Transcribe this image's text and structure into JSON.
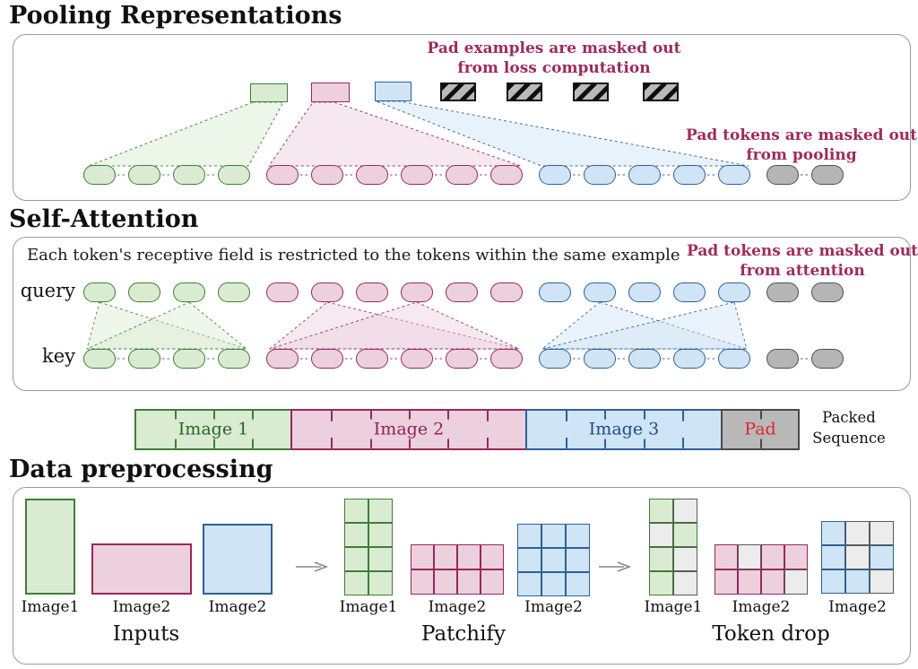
{
  "colors": {
    "green": {
      "fill": "#d9ecd2",
      "border": "#3f7d36",
      "dark": "#2a642c"
    },
    "pink": {
      "fill": "#ecd0dd",
      "border": "#97285c",
      "dark": "#8f2456"
    },
    "blue": {
      "fill": "#cfe4f5",
      "border": "#2e6095",
      "dark": "#1f4d8a"
    },
    "gray": {
      "fill": "#b5b5b5",
      "border": "#4f4f4f",
      "dark": "#333333"
    },
    "pad": {
      "fill": "#b9b9b9",
      "border": "#4a4a4a",
      "dark": "#e42527"
    },
    "drop": {
      "fill": "#ececec",
      "border": "#5a5a5a"
    },
    "annotation": "#9e2b5e",
    "arrow": "#8a8a8a"
  },
  "token_groups": [
    {
      "color": "green",
      "count": 4
    },
    {
      "color": "pink",
      "count": 6
    },
    {
      "color": "blue",
      "count": 5
    },
    {
      "color": "gray",
      "count": 2
    }
  ],
  "sections": {
    "pooling": {
      "title": "Pooling Representations",
      "pad_examples": 4,
      "anno_loss": [
        "Pad examples are masked out",
        "from loss computation"
      ],
      "anno_pool": [
        "Pad tokens are masked out",
        "from pooling"
      ]
    },
    "attention": {
      "title": "Self-Attention",
      "caption": "Each token's receptive field is restricted to the tokens within the same example",
      "anno": [
        "Pad tokens are masked out",
        "from attention"
      ],
      "query_label": "query",
      "key_label": "key"
    },
    "packed_bar": {
      "segments": [
        {
          "label": "Image 1",
          "cells": 4,
          "color": "green"
        },
        {
          "label": "Image 2",
          "cells": 6,
          "color": "pink"
        },
        {
          "label": "Image 3",
          "cells": 5,
          "color": "blue"
        },
        {
          "label": "Pad",
          "cells": 2,
          "color": "pad"
        }
      ],
      "side_label": [
        "Packed",
        "Sequence"
      ]
    },
    "preprocessing": {
      "title": "Data preprocessing",
      "stages": [
        {
          "name": "Inputs",
          "items": [
            {
              "label": "Image1",
              "color": "green",
              "shape": "rect"
            },
            {
              "label": "Image2",
              "color": "pink",
              "shape": "rect"
            },
            {
              "label": "Image2",
              "color": "blue",
              "shape": "rect"
            }
          ]
        },
        {
          "name": "Patchify",
          "items": [
            {
              "label": "Image1",
              "color": "green",
              "grid": [
                2,
                4
              ],
              "pattern": [
                "11",
                "11",
                "11",
                "11"
              ]
            },
            {
              "label": "Image2",
              "color": "pink",
              "grid": [
                4,
                2
              ],
              "pattern": [
                "1111",
                "1111"
              ]
            },
            {
              "label": "Image2",
              "color": "blue",
              "grid": [
                3,
                3
              ],
              "pattern": [
                "111",
                "111",
                "111"
              ]
            }
          ]
        },
        {
          "name": "Token drop",
          "items": [
            {
              "label": "Image1",
              "color": "green",
              "grid": [
                2,
                4
              ],
              "pattern": [
                "10",
                "01",
                "10",
                "10"
              ]
            },
            {
              "label": "Image2",
              "color": "pink",
              "grid": [
                4,
                2
              ],
              "pattern": [
                "1011",
                "1110"
              ]
            },
            {
              "label": "Image2",
              "color": "blue",
              "grid": [
                3,
                3
              ],
              "pattern": [
                "100",
                "101",
                "110"
              ]
            }
          ]
        }
      ]
    }
  }
}
